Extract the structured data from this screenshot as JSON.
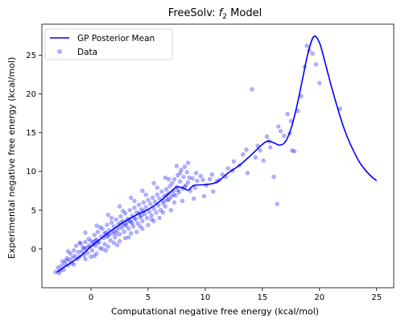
{
  "chart_data": {
    "type": "scatter",
    "title": "FreeSolv: ",
    "title_symbol": "f",
    "title_subscript": "2",
    "title_suffix": " Model",
    "xlabel": "Computational negative free energy (kcal/mol)",
    "ylabel": "Experimental negative free energy (kcal/mol)",
    "xlim": [
      -4.3,
      26.5
    ],
    "ylim": [
      -5.0,
      29.0
    ],
    "xticks": [
      0,
      5,
      10,
      15,
      20,
      25
    ],
    "yticks": [
      0,
      5,
      10,
      15,
      20,
      25
    ],
    "grid": false,
    "legend_position": "top-left",
    "series": [
      {
        "name": "GP Posterior Mean",
        "kind": "line",
        "color": "#0000ff",
        "x": [
          -3.0,
          -2.0,
          -1.0,
          0.0,
          1.0,
          2.0,
          3.0,
          4.0,
          5.0,
          6.0,
          7.0,
          7.5,
          8.0,
          8.5,
          9.0,
          10.0,
          11.0,
          12.0,
          13.0,
          14.0,
          15.0,
          15.5,
          16.0,
          16.5,
          17.0,
          17.5,
          18.0,
          18.5,
          19.0,
          19.5,
          20.0,
          20.5,
          21.0,
          21.5,
          22.0,
          22.5,
          23.0,
          23.5,
          24.0,
          24.5,
          25.0
        ],
        "y": [
          -3.0,
          -2.0,
          -1.0,
          0.3,
          1.5,
          2.6,
          3.6,
          4.4,
          5.1,
          6.1,
          7.4,
          8.0,
          7.9,
          7.6,
          8.2,
          8.3,
          8.6,
          9.8,
          10.8,
          12.1,
          13.5,
          13.9,
          13.7,
          13.4,
          13.8,
          15.5,
          18.3,
          21.8,
          25.3,
          27.4,
          26.6,
          24.0,
          21.2,
          18.6,
          16.2,
          14.2,
          12.6,
          11.2,
          10.2,
          9.4,
          8.8
        ]
      },
      {
        "name": "Data",
        "kind": "scatter",
        "color": "#0000ff",
        "alpha": 0.3,
        "points": [
          [
            -3.1,
            -3.0
          ],
          [
            -2.9,
            -2.4
          ],
          [
            -2.8,
            -3.1
          ],
          [
            -2.6,
            -2.2
          ],
          [
            -2.5,
            -1.6
          ],
          [
            -2.4,
            -2.7
          ],
          [
            -2.3,
            -1.9
          ],
          [
            -2.1,
            -1.2
          ],
          [
            -2.0,
            -2.1
          ],
          [
            -1.9,
            -1.4
          ],
          [
            -1.8,
            -0.6
          ],
          [
            -1.7,
            -1.8
          ],
          [
            -1.6,
            -1.1
          ],
          [
            -1.5,
            -0.2
          ],
          [
            -1.4,
            -0.9
          ],
          [
            -1.3,
            0.4
          ],
          [
            -1.2,
            -1.3
          ],
          [
            -1.1,
            -0.4
          ],
          [
            -1.0,
            -1.0
          ],
          [
            -0.9,
            0.7
          ],
          [
            -0.8,
            -0.3
          ],
          [
            -0.7,
            0.2
          ],
          [
            -0.6,
            -0.8
          ],
          [
            -0.5,
            0.9
          ],
          [
            -0.4,
            0.1
          ],
          [
            -0.3,
            -0.5
          ],
          [
            -0.2,
            1.3
          ],
          [
            -0.1,
            0.3
          ],
          [
            0.0,
            1.0
          ],
          [
            0.1,
            -0.2
          ],
          [
            0.2,
            0.6
          ],
          [
            0.3,
            1.8
          ],
          [
            0.4,
            0.4
          ],
          [
            0.5,
            1.2
          ],
          [
            0.6,
            2.2
          ],
          [
            0.7,
            0.9
          ],
          [
            0.8,
            0.1
          ],
          [
            0.9,
            1.6
          ],
          [
            1.0,
            2.6
          ],
          [
            1.1,
            1.4
          ],
          [
            1.2,
            0.6
          ],
          [
            1.3,
            2.1
          ],
          [
            1.4,
            3.1
          ],
          [
            1.5,
            1.7
          ],
          [
            1.6,
            2.4
          ],
          [
            1.7,
            1.1
          ],
          [
            1.8,
            3.4
          ],
          [
            1.9,
            2.0
          ],
          [
            2.0,
            2.9
          ],
          [
            2.1,
            1.5
          ],
          [
            2.2,
            3.8
          ],
          [
            2.3,
            2.4
          ],
          [
            2.4,
            3.2
          ],
          [
            2.5,
            1.9
          ],
          [
            2.6,
            4.2
          ],
          [
            2.7,
            2.7
          ],
          [
            2.8,
            3.6
          ],
          [
            2.9,
            2.2
          ],
          [
            3.0,
            4.6
          ],
          [
            3.1,
            3.0
          ],
          [
            3.2,
            3.9
          ],
          [
            3.3,
            2.6
          ],
          [
            3.4,
            5.0
          ],
          [
            3.5,
            3.5
          ],
          [
            3.6,
            4.3
          ],
          [
            3.7,
            2.9
          ],
          [
            3.8,
            5.3
          ],
          [
            3.9,
            3.8
          ],
          [
            4.0,
            4.7
          ],
          [
            4.1,
            3.3
          ],
          [
            4.2,
            5.7
          ],
          [
            4.3,
            4.1
          ],
          [
            4.4,
            5.1
          ],
          [
            4.5,
            3.6
          ],
          [
            4.6,
            6.0
          ],
          [
            4.7,
            4.5
          ],
          [
            4.8,
            5.4
          ],
          [
            4.9,
            4.0
          ],
          [
            5.0,
            6.3
          ],
          [
            5.1,
            4.8
          ],
          [
            5.2,
            5.8
          ],
          [
            5.3,
            4.3
          ],
          [
            5.4,
            6.6
          ],
          [
            5.5,
            5.2
          ],
          [
            5.6,
            6.1
          ],
          [
            5.7,
            4.7
          ],
          [
            5.8,
            7.0
          ],
          [
            5.9,
            5.6
          ],
          [
            6.0,
            6.5
          ],
          [
            6.1,
            5.0
          ],
          [
            6.2,
            7.4
          ],
          [
            6.3,
            5.9
          ],
          [
            6.4,
            6.8
          ],
          [
            6.5,
            5.5
          ],
          [
            6.6,
            7.7
          ],
          [
            6.7,
            6.3
          ],
          [
            6.8,
            7.2
          ],
          [
            6.9,
            8.1
          ],
          [
            7.0,
            6.7
          ],
          [
            7.1,
            8.5
          ],
          [
            7.2,
            7.5
          ],
          [
            7.3,
            9.0
          ],
          [
            7.4,
            6.9
          ],
          [
            7.5,
            8.0
          ],
          [
            7.6,
            9.5
          ],
          [
            7.7,
            7.3
          ],
          [
            7.8,
            8.7
          ],
          [
            7.9,
            10.2
          ],
          [
            8.0,
            7.8
          ],
          [
            8.1,
            9.3
          ],
          [
            8.2,
            10.6
          ],
          [
            8.3,
            8.2
          ],
          [
            8.4,
            9.9
          ],
          [
            8.5,
            8.6
          ],
          [
            8.7,
            7.5
          ],
          [
            8.9,
            9.1
          ],
          [
            9.1,
            7.9
          ],
          [
            9.3,
            8.8
          ],
          [
            9.6,
            9.4
          ],
          [
            9.9,
            6.8
          ],
          [
            10.1,
            8.2
          ],
          [
            10.4,
            9.0
          ],
          [
            10.7,
            7.4
          ],
          [
            11.0,
            8.7
          ],
          [
            11.5,
            9.6
          ],
          [
            12.0,
            10.4
          ],
          [
            12.5,
            11.3
          ],
          [
            13.0,
            10.8
          ],
          [
            13.3,
            12.2
          ],
          [
            13.7,
            9.8
          ],
          [
            14.1,
            20.6
          ],
          [
            14.4,
            11.8
          ],
          [
            14.8,
            12.7
          ],
          [
            15.1,
            11.4
          ],
          [
            15.4,
            14.5
          ],
          [
            15.7,
            13.1
          ],
          [
            16.0,
            9.3
          ],
          [
            16.3,
            5.8
          ],
          [
            16.6,
            15.2
          ],
          [
            16.9,
            14.6
          ],
          [
            17.2,
            17.4
          ],
          [
            17.5,
            16.5
          ],
          [
            17.8,
            12.6
          ],
          [
            18.1,
            17.8
          ],
          [
            18.4,
            19.7
          ],
          [
            18.7,
            23.5
          ],
          [
            18.9,
            26.2
          ],
          [
            19.1,
            25.6
          ],
          [
            19.4,
            25.2
          ],
          [
            19.7,
            23.8
          ],
          [
            20.0,
            21.4
          ],
          [
            21.8,
            18.1
          ],
          [
            0.5,
            -0.6
          ],
          [
            1.5,
            0.3
          ],
          [
            2.5,
            1.0
          ],
          [
            3.5,
            2.0
          ],
          [
            4.5,
            2.6
          ],
          [
            5.5,
            3.6
          ],
          [
            -0.5,
            2.1
          ],
          [
            0.5,
            3.0
          ],
          [
            1.5,
            4.4
          ],
          [
            2.5,
            5.5
          ],
          [
            3.5,
            6.6
          ],
          [
            4.5,
            7.5
          ],
          [
            5.5,
            8.5
          ],
          [
            6.5,
            9.2
          ],
          [
            7.5,
            10.7
          ],
          [
            8.5,
            11.1
          ],
          [
            -2.0,
            -0.3
          ],
          [
            -1.0,
            0.8
          ],
          [
            0.0,
            -1.0
          ],
          [
            1.0,
            0.0
          ],
          [
            2.0,
            0.8
          ],
          [
            3.0,
            1.4
          ],
          [
            4.0,
            2.2
          ],
          [
            5.0,
            3.1
          ],
          [
            6.0,
            4.0
          ],
          [
            7.0,
            5.0
          ],
          [
            8.0,
            6.2
          ],
          [
            9.0,
            6.5
          ],
          [
            -2.7,
            -2.8
          ],
          [
            -2.2,
            -1.5
          ],
          [
            -1.5,
            -2.0
          ],
          [
            -0.5,
            -1.3
          ],
          [
            0.3,
            -0.9
          ],
          [
            1.3,
            -0.2
          ],
          [
            2.3,
            0.5
          ],
          [
            3.3,
            1.5
          ],
          [
            4.3,
            2.9
          ],
          [
            5.3,
            3.8
          ],
          [
            6.3,
            4.7
          ],
          [
            7.3,
            6.0
          ],
          [
            0.8,
            2.8
          ],
          [
            1.8,
            4.0
          ],
          [
            2.8,
            4.9
          ],
          [
            3.8,
            6.2
          ],
          [
            4.8,
            7.0
          ],
          [
            5.8,
            7.9
          ],
          [
            6.8,
            9.0
          ],
          [
            7.8,
            9.8
          ],
          [
            3.0,
            3.2
          ],
          [
            3.2,
            3.5
          ],
          [
            3.4,
            3.7
          ],
          [
            3.6,
            3.3
          ],
          [
            3.8,
            4.0
          ],
          [
            2.8,
            3.1
          ],
          [
            2.6,
            3.4
          ],
          [
            2.4,
            2.8
          ],
          [
            4.2,
            4.6
          ],
          [
            4.4,
            4.3
          ],
          [
            4.6,
            4.9
          ],
          [
            1.6,
            1.9
          ],
          [
            1.4,
            1.6
          ],
          [
            1.2,
            2.0
          ],
          [
            2.0,
            2.3
          ],
          [
            2.2,
            2.0
          ],
          [
            0.6,
            0.8
          ],
          [
            0.4,
            1.1
          ],
          [
            0.2,
            0.9
          ],
          [
            -0.2,
            0.4
          ],
          [
            -0.6,
            0.1
          ],
          [
            6.4,
            6.2
          ],
          [
            6.6,
            6.9
          ],
          [
            6.8,
            6.4
          ],
          [
            7.2,
            7.0
          ],
          [
            7.6,
            7.6
          ],
          [
            8.2,
            8.0
          ],
          [
            8.6,
            9.2
          ],
          [
            9.2,
            9.8
          ],
          [
            9.8,
            8.9
          ],
          [
            10.6,
            9.6
          ],
          [
            11.2,
            8.9
          ],
          [
            11.8,
            9.3
          ],
          [
            12.4,
            10.1
          ],
          [
            13.6,
            12.8
          ],
          [
            14.6,
            13.3
          ],
          [
            15.6,
            13.9
          ],
          [
            16.4,
            15.8
          ],
          [
            17.4,
            14.9
          ],
          [
            17.6,
            12.7
          ]
        ]
      }
    ]
  }
}
